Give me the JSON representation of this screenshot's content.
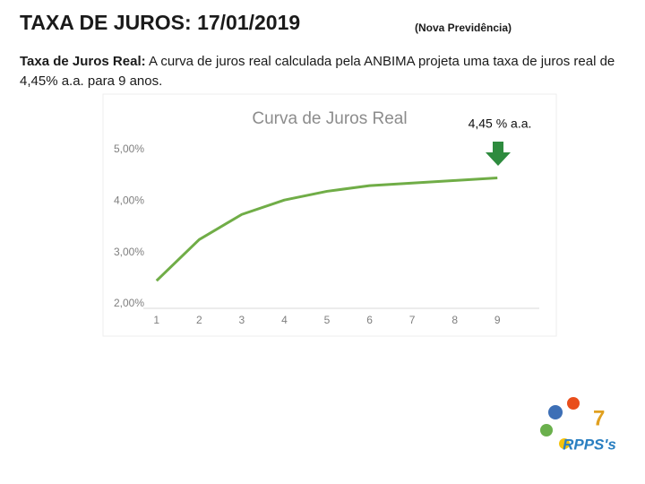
{
  "title": "TAXA DE JUROS: 17/01/2019",
  "subtitle": "(Nova Previdência)",
  "text": {
    "lead": "Taxa de Juros Real:",
    "body": "A curva de juros real calculada pela ANBIMA projeta uma taxa de juros real de 4,45% a.a. para 9 anos."
  },
  "logo": {
    "label": "RPPS's"
  },
  "chart_data": {
    "type": "line",
    "title": "Curva de Juros Real",
    "categories": [
      "1",
      "2",
      "3",
      "4",
      "5",
      "6",
      "7",
      "8",
      "9"
    ],
    "series": [
      {
        "name": "Curva de Juros Real",
        "color": "#70ad47",
        "values": [
          2.45,
          3.25,
          3.74,
          4.02,
          4.19,
          4.3,
          4.35,
          4.4,
          4.45
        ]
      }
    ],
    "ylim": [
      2,
      5
    ],
    "yticks": [
      {
        "value": 2,
        "label": "2,00%"
      },
      {
        "value": 3,
        "label": "3,00%"
      },
      {
        "value": 4,
        "label": "4,00%"
      },
      {
        "value": 5,
        "label": "5,00%"
      }
    ],
    "grid": false,
    "annotation": "4,45 % a.a."
  }
}
